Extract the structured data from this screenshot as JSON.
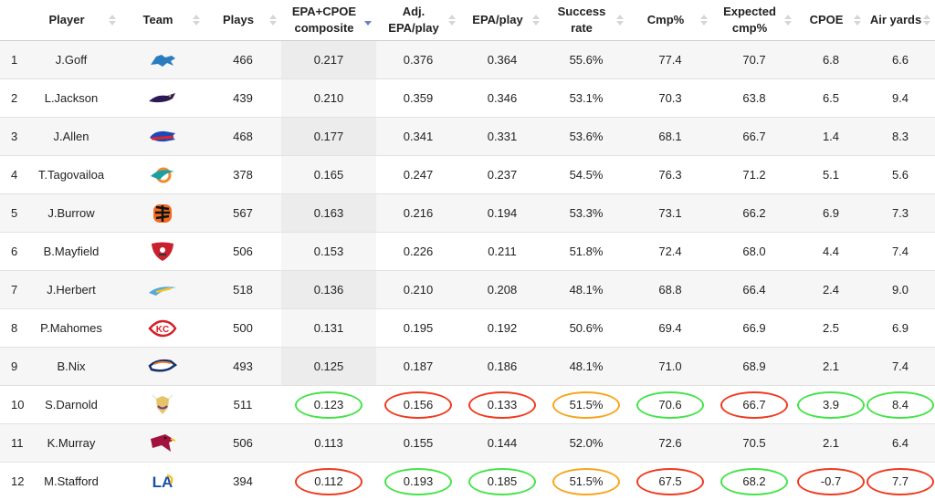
{
  "columns": [
    {
      "key": "idx",
      "label": ""
    },
    {
      "key": "player",
      "label": "Player"
    },
    {
      "key": "team",
      "label": "Team"
    },
    {
      "key": "plays",
      "label": "Plays"
    },
    {
      "key": "composite",
      "label": "EPA+CPOE composite"
    },
    {
      "key": "adj_epa",
      "label": "Adj. EPA/play"
    },
    {
      "key": "epa",
      "label": "EPA/play"
    },
    {
      "key": "success",
      "label": "Success rate"
    },
    {
      "key": "cmp",
      "label": "Cmp%"
    },
    {
      "key": "xcmp",
      "label": "Expected cmp%"
    },
    {
      "key": "cpoe",
      "label": "CPOE"
    },
    {
      "key": "air",
      "label": "Air yards"
    }
  ],
  "colors": {
    "green": "#45e34a",
    "red": "#ef3a1f",
    "orange": "#f7a51c",
    "sort_active": "#6b7fc4"
  },
  "rows": [
    {
      "idx": "1",
      "player": "J.Goff",
      "team": "lions-logo",
      "plays": "466",
      "composite": "0.217",
      "adj_epa": "0.376",
      "epa": "0.364",
      "success": "55.6%",
      "cmp": "77.4",
      "xcmp": "70.7",
      "cpoe": "6.8",
      "air": "6.6"
    },
    {
      "idx": "2",
      "player": "L.Jackson",
      "team": "ravens-logo",
      "plays": "439",
      "composite": "0.210",
      "adj_epa": "0.359",
      "epa": "0.346",
      "success": "53.1%",
      "cmp": "70.3",
      "xcmp": "63.8",
      "cpoe": "6.5",
      "air": "9.4"
    },
    {
      "idx": "3",
      "player": "J.Allen",
      "team": "bills-logo",
      "plays": "468",
      "composite": "0.177",
      "adj_epa": "0.341",
      "epa": "0.331",
      "success": "53.6%",
      "cmp": "68.1",
      "xcmp": "66.7",
      "cpoe": "1.4",
      "air": "8.3"
    },
    {
      "idx": "4",
      "player": "T.Tagovailoa",
      "team": "dolphins-logo",
      "plays": "378",
      "composite": "0.165",
      "adj_epa": "0.247",
      "epa": "0.237",
      "success": "54.5%",
      "cmp": "76.3",
      "xcmp": "71.2",
      "cpoe": "5.1",
      "air": "5.6"
    },
    {
      "idx": "5",
      "player": "J.Burrow",
      "team": "bengals-logo",
      "plays": "567",
      "composite": "0.163",
      "adj_epa": "0.216",
      "epa": "0.194",
      "success": "53.3%",
      "cmp": "73.1",
      "xcmp": "66.2",
      "cpoe": "6.9",
      "air": "7.3"
    },
    {
      "idx": "6",
      "player": "B.Mayfield",
      "team": "buccaneers-logo",
      "plays": "506",
      "composite": "0.153",
      "adj_epa": "0.226",
      "epa": "0.211",
      "success": "51.8%",
      "cmp": "72.4",
      "xcmp": "68.0",
      "cpoe": "4.4",
      "air": "7.4"
    },
    {
      "idx": "7",
      "player": "J.Herbert",
      "team": "chargers-logo",
      "plays": "518",
      "composite": "0.136",
      "adj_epa": "0.210",
      "epa": "0.208",
      "success": "48.1%",
      "cmp": "68.8",
      "xcmp": "66.4",
      "cpoe": "2.4",
      "air": "9.0"
    },
    {
      "idx": "8",
      "player": "P.Mahomes",
      "team": "chiefs-logo",
      "plays": "500",
      "composite": "0.131",
      "adj_epa": "0.195",
      "epa": "0.192",
      "success": "50.6%",
      "cmp": "69.4",
      "xcmp": "66.9",
      "cpoe": "2.5",
      "air": "6.9"
    },
    {
      "idx": "9",
      "player": "B.Nix",
      "team": "broncos-logo",
      "plays": "493",
      "composite": "0.125",
      "adj_epa": "0.187",
      "epa": "0.186",
      "success": "48.1%",
      "cmp": "71.0",
      "xcmp": "68.9",
      "cpoe": "2.1",
      "air": "7.4"
    },
    {
      "idx": "10",
      "player": "S.Darnold",
      "team": "vikings-logo",
      "plays": "511",
      "composite": "0.123",
      "adj_epa": "0.156",
      "epa": "0.133",
      "success": "51.5%",
      "cmp": "70.6",
      "xcmp": "66.7",
      "cpoe": "3.9",
      "air": "8.4",
      "highlights": {
        "composite": "green",
        "adj_epa": "red",
        "epa": "red",
        "success": "orange",
        "cmp": "green",
        "xcmp": "red",
        "cpoe": "green",
        "air": "green"
      }
    },
    {
      "idx": "11",
      "player": "K.Murray",
      "team": "cardinals-logo",
      "plays": "506",
      "composite": "0.113",
      "adj_epa": "0.155",
      "epa": "0.144",
      "success": "52.0%",
      "cmp": "72.6",
      "xcmp": "70.5",
      "cpoe": "2.1",
      "air": "6.4"
    },
    {
      "idx": "12",
      "player": "M.Stafford",
      "team": "rams-logo",
      "plays": "394",
      "composite": "0.112",
      "adj_epa": "0.193",
      "epa": "0.185",
      "success": "51.5%",
      "cmp": "67.5",
      "xcmp": "68.2",
      "cpoe": "-0.7",
      "air": "7.7",
      "highlights": {
        "composite": "red",
        "adj_epa": "green",
        "epa": "green",
        "success": "orange",
        "cmp": "red",
        "xcmp": "green",
        "cpoe": "red",
        "air": "red"
      }
    }
  ]
}
